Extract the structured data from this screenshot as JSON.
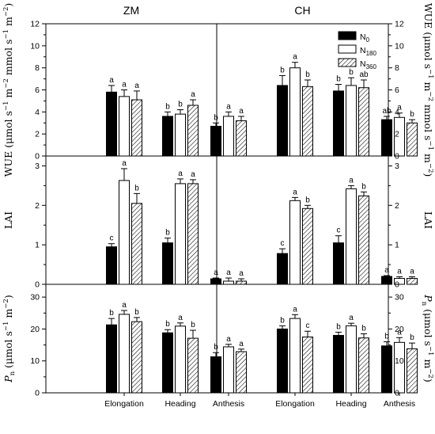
{
  "chart_data": {
    "type": "bar",
    "columns": [
      "ZM",
      "CH"
    ],
    "categories": [
      "Elongation",
      "Heading",
      "Anthesis"
    ],
    "legend": [
      {
        "base": "N",
        "sub": "0",
        "pattern": "solid"
      },
      {
        "base": "N",
        "sub": "180",
        "pattern": "open"
      },
      {
        "base": "N",
        "sub": "360",
        "pattern": "hatched"
      }
    ],
    "legend_position": "top-right",
    "rows": [
      {
        "key": "wue",
        "ylabel": {
          "main": "WUE (μmol s",
          "sup1": "−1",
          "mid1": " m",
          "sup2": "−2",
          "mid2": " mmol s",
          "sup3": "−1",
          "mid3": " m",
          "sup4": "−2",
          "end": ")"
        },
        "ylim": [
          0,
          12
        ],
        "yticks": [
          "0",
          "2",
          "4",
          "6",
          "8",
          "10",
          "12"
        ],
        "panels": [
          {
            "values": [
              [
                5.8,
                5.4,
                5.1
              ],
              [
                3.6,
                3.8,
                4.6
              ],
              [
                2.7,
                3.6,
                3.2
              ]
            ],
            "errors": [
              [
                0.6,
                0.6,
                0.8
              ],
              [
                0.4,
                0.4,
                0.5
              ],
              [
                0.3,
                0.4,
                0.4
              ]
            ],
            "letters": [
              [
                "a",
                "a",
                "a"
              ],
              [
                "b",
                "b",
                "a"
              ],
              [
                "b",
                "a",
                "a"
              ]
            ]
          },
          {
            "values": [
              [
                6.4,
                8.0,
                6.3
              ],
              [
                5.9,
                6.4,
                6.2
              ],
              [
                3.3,
                3.5,
                3.0
              ]
            ],
            "errors": [
              [
                0.9,
                0.5,
                0.6
              ],
              [
                0.6,
                0.7,
                0.7
              ],
              [
                0.3,
                0.4,
                0.3
              ]
            ],
            "letters": [
              [
                "b",
                "a",
                "b"
              ],
              [
                "b",
                "b",
                "ab"
              ],
              [
                "ab",
                "a",
                "b"
              ]
            ]
          }
        ]
      },
      {
        "key": "lai",
        "ylabel": {
          "main": "LAI"
        },
        "ylim": [
          0,
          3.25
        ],
        "yticks": [
          "0",
          "1",
          "2",
          "3"
        ],
        "panels": [
          {
            "values": [
              [
                0.95,
                2.63,
                2.05
              ],
              [
                1.05,
                2.55,
                2.55
              ],
              [
                0.14,
                0.08,
                0.08
              ]
            ],
            "errors": [
              [
                0.08,
                0.3,
                0.25
              ],
              [
                0.12,
                0.12,
                0.1
              ],
              [
                0.02,
                0.08,
                0.06
              ]
            ],
            "letters": [
              [
                "c",
                "a",
                "b"
              ],
              [
                "b",
                "a",
                "a"
              ],
              [
                "a",
                "a",
                "a"
              ]
            ]
          },
          {
            "values": [
              [
                0.78,
                2.12,
                1.92
              ],
              [
                1.05,
                2.42,
                2.24
              ],
              [
                0.2,
                0.15,
                0.15
              ]
            ],
            "errors": [
              [
                0.12,
                0.08,
                0.08
              ],
              [
                0.18,
                0.08,
                0.1
              ],
              [
                0.02,
                0.04,
                0.04
              ]
            ],
            "letters": [
              [
                "c",
                "a",
                "b"
              ],
              [
                "c",
                "a",
                "b"
              ],
              [
                "a",
                "a",
                "a"
              ]
            ]
          }
        ]
      },
      {
        "key": "pn",
        "ylabel": {
          "italic": "P",
          "sub": "n",
          "main": " (μmol s",
          "sup1": "−1",
          "mid1": " m",
          "sup2": "−2",
          "end": ")"
        },
        "ylim": [
          0,
          34
        ],
        "yticks": [
          "0",
          "10",
          "20",
          "30"
        ],
        "panels": [
          {
            "values": [
              [
                21.3,
                24.6,
                22.3
              ],
              [
                18.8,
                20.9,
                17.1
              ],
              [
                11.3,
                14.4,
                12.9
              ]
            ],
            "errors": [
              [
                2.0,
                1.2,
                1.3
              ],
              [
                1.0,
                1.0,
                2.5
              ],
              [
                1.3,
                0.8,
                0.8
              ]
            ],
            "letters": [
              [
                "b",
                "a",
                "b"
              ],
              [
                "b",
                "a",
                "b"
              ],
              [
                "b",
                "a",
                "a"
              ]
            ]
          },
          {
            "values": [
              [
                20.0,
                23.3,
                17.5
              ],
              [
                18.0,
                21.0,
                17.2
              ],
              [
                14.7,
                15.8,
                13.8
              ]
            ],
            "errors": [
              [
                1.0,
                1.2,
                1.8
              ],
              [
                1.0,
                0.8,
                1.3
              ],
              [
                1.3,
                1.5,
                1.8
              ]
            ],
            "letters": [
              [
                "b",
                "a",
                "c"
              ],
              [
                "b",
                "a",
                "b"
              ],
              [
                "b",
                "a",
                "b"
              ]
            ]
          }
        ]
      }
    ]
  }
}
